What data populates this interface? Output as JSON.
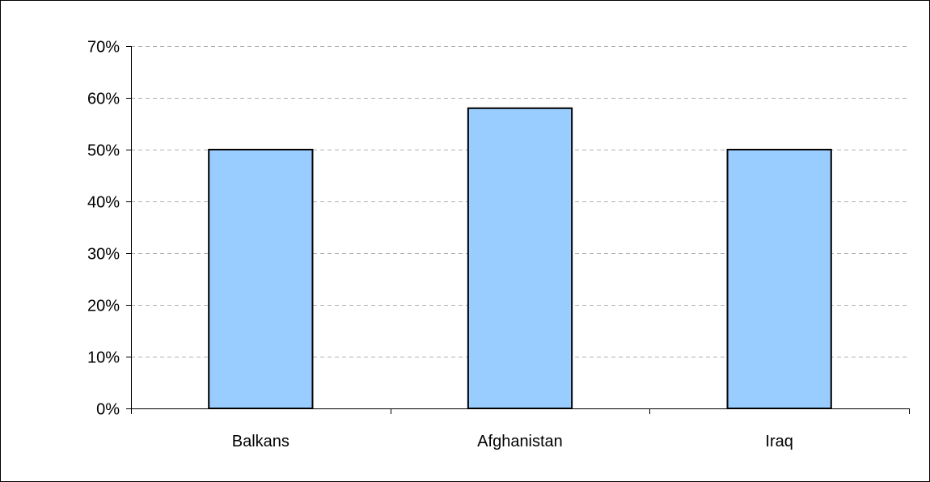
{
  "chart_data": {
    "type": "bar",
    "categories": [
      "Balkans",
      "Afghanistan",
      "Iraq"
    ],
    "values": [
      50,
      58,
      50
    ],
    "unit": "%",
    "title": "",
    "xlabel": "",
    "ylabel": "",
    "ylim": [
      0,
      70
    ],
    "ytick_step": 10,
    "ytick_labels": [
      "0%",
      "10%",
      "20%",
      "30%",
      "40%",
      "50%",
      "60%",
      "70%"
    ],
    "grid": "horizontal dashed",
    "legend": "none",
    "colors": {
      "bar_fill": "#99ccff",
      "bar_stroke": "#000000",
      "grid": "#b0b0b0",
      "axis": "#000000"
    }
  }
}
